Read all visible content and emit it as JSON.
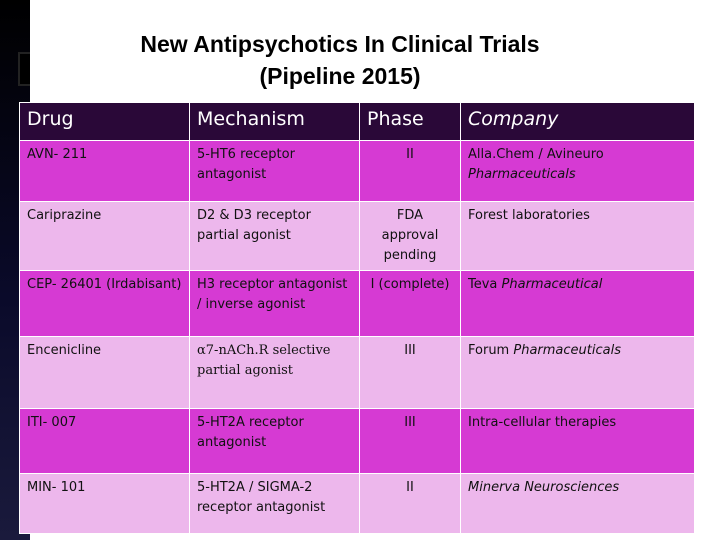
{
  "slide": {
    "title_line1": "New Antipsychotics In Clinical Trials",
    "title_line2": "(Pipeline 2015)"
  },
  "table": {
    "headers": [
      "Drug",
      "Mechanism",
      "Phase",
      "Company"
    ],
    "rows": [
      {
        "drug": "AVN- 211",
        "mechanism": "5-HT6 receptor antagonist",
        "phase": "II",
        "company": "Alla.Chem / Avineuro",
        "company_italic": "Pharmaceuticals"
      },
      {
        "drug": "Cariprazine",
        "mechanism": "D2 & D3 receptor partial agonist",
        "phase": "FDA approval pending",
        "company": "Forest laboratories",
        "company_italic": ""
      },
      {
        "drug": "CEP- 26401 (Irdabisant)",
        "mechanism": "H3 receptor antagonist / inverse agonist",
        "phase": "I (complete)",
        "company": "Teva",
        "company_italic": "Pharmaceutical"
      },
      {
        "drug": "Encenicline",
        "mechanism": "α7-nACh.R selective partial agonist",
        "phase": "III",
        "company": "Forum",
        "company_italic": "Pharmaceuticals"
      },
      {
        "drug": "ITI- 007",
        "mechanism": "5-HT2A receptor antagonist",
        "phase": "III",
        "company": "Intra-cellular therapies",
        "company_italic": ""
      },
      {
        "drug": "MIN- 101",
        "mechanism": "5-HT2A / SIGMA-2 receptor antagonist",
        "phase": "II",
        "company": "",
        "company_italic": "Minerva Neurosciences"
      }
    ]
  },
  "colors": {
    "header_bg": "#2a0838",
    "row_dark": "#d63ad3",
    "row_light": "#edb7ec",
    "sidebar": "#000000"
  }
}
